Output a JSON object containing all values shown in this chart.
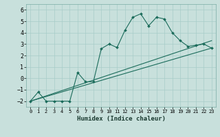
{
  "xlabel": "Humidex (Indice chaleur)",
  "ylabel": "",
  "background_color": "#c8e0dc",
  "grid_color": "#a8ccc8",
  "line_color": "#1a6b5a",
  "xlim": [
    -0.5,
    23.5
  ],
  "ylim": [
    -2.5,
    6.5
  ],
  "xticks": [
    0,
    1,
    2,
    3,
    4,
    5,
    6,
    7,
    8,
    9,
    10,
    11,
    12,
    13,
    14,
    15,
    16,
    17,
    18,
    19,
    20,
    21,
    22,
    23
  ],
  "yticks": [
    -2,
    -1,
    0,
    1,
    2,
    3,
    4,
    5,
    6
  ],
  "series1_x": [
    0,
    1,
    2,
    3,
    4,
    5,
    6,
    7,
    8,
    9,
    10,
    11,
    12,
    13,
    14,
    15,
    16,
    17,
    18,
    19,
    20,
    21,
    22,
    23
  ],
  "series1_y": [
    -2,
    -1.2,
    -2,
    -2,
    -2,
    -2,
    0.5,
    -0.3,
    -0.3,
    2.6,
    3.0,
    2.7,
    4.2,
    5.35,
    5.65,
    4.6,
    5.35,
    5.2,
    4.0,
    3.3,
    2.8,
    2.9,
    3.0,
    2.65
  ],
  "series2_x": [
    0,
    23
  ],
  "series2_y": [
    -2,
    3.3
  ],
  "series3_x": [
    0,
    23
  ],
  "series3_y": [
    -2,
    2.65
  ]
}
